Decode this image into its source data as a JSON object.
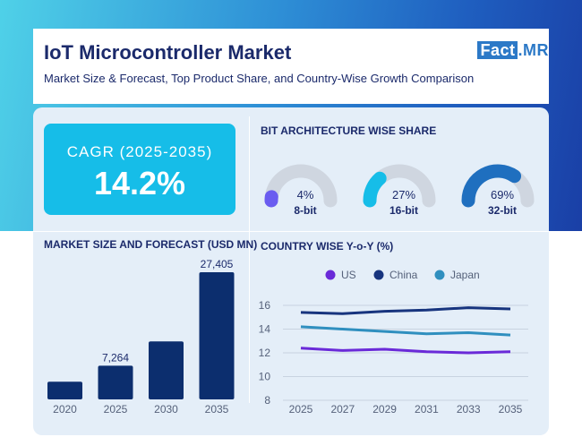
{
  "header": {
    "title": "IoT Microcontroller Market",
    "subtitle": "Market Size & Forecast, Top Product Share, and Country-Wise Growth Comparison",
    "logo_fact": "Fact",
    "logo_dot": ".",
    "logo_mr": "MR"
  },
  "cagr": {
    "label": "CAGR (2025-2035)",
    "value": "14.2%"
  },
  "bit_share": {
    "title": "BIT ARCHITECTURE WISE SHARE",
    "items": [
      {
        "pct": "4%",
        "value": 4,
        "label": "8-bit",
        "color": "#6a5cf0"
      },
      {
        "pct": "27%",
        "value": 27,
        "label": "16-bit",
        "color": "#16bde8"
      },
      {
        "pct": "69%",
        "value": 69,
        "label": "32-bit",
        "color": "#1f6fbf"
      }
    ],
    "track_color": "#cfd6e0"
  },
  "chart_data": [
    {
      "type": "bar",
      "title": "MARKET SIZE AND FORECAST (USD MN)",
      "categories": [
        "2020",
        "2025",
        "2030",
        "2035"
      ],
      "values": [
        3800,
        7264,
        12500,
        27405
      ],
      "data_labels": [
        "",
        "7,264",
        "",
        "27,405"
      ],
      "ylim": [
        0,
        28500
      ],
      "color": "#0c2e6e"
    },
    {
      "type": "line",
      "title": "COUNTRY WISE Y-o-Y (%)",
      "x": [
        "2025",
        "2027",
        "2029",
        "2031",
        "2033",
        "2035"
      ],
      "series": [
        {
          "name": "US",
          "color": "#6a2ad8",
          "values": [
            12.4,
            12.2,
            12.3,
            12.1,
            12.0,
            12.1
          ]
        },
        {
          "name": "China",
          "color": "#17347e",
          "values": [
            15.4,
            15.3,
            15.5,
            15.6,
            15.8,
            15.7
          ]
        },
        {
          "name": "Japan",
          "color": "#2f8fbf",
          "values": [
            14.2,
            14.0,
            13.8,
            13.6,
            13.7,
            13.5
          ]
        }
      ],
      "yticks": [
        "16",
        "14",
        "12",
        "10",
        "8"
      ],
      "ylim": [
        8,
        16
      ]
    }
  ]
}
